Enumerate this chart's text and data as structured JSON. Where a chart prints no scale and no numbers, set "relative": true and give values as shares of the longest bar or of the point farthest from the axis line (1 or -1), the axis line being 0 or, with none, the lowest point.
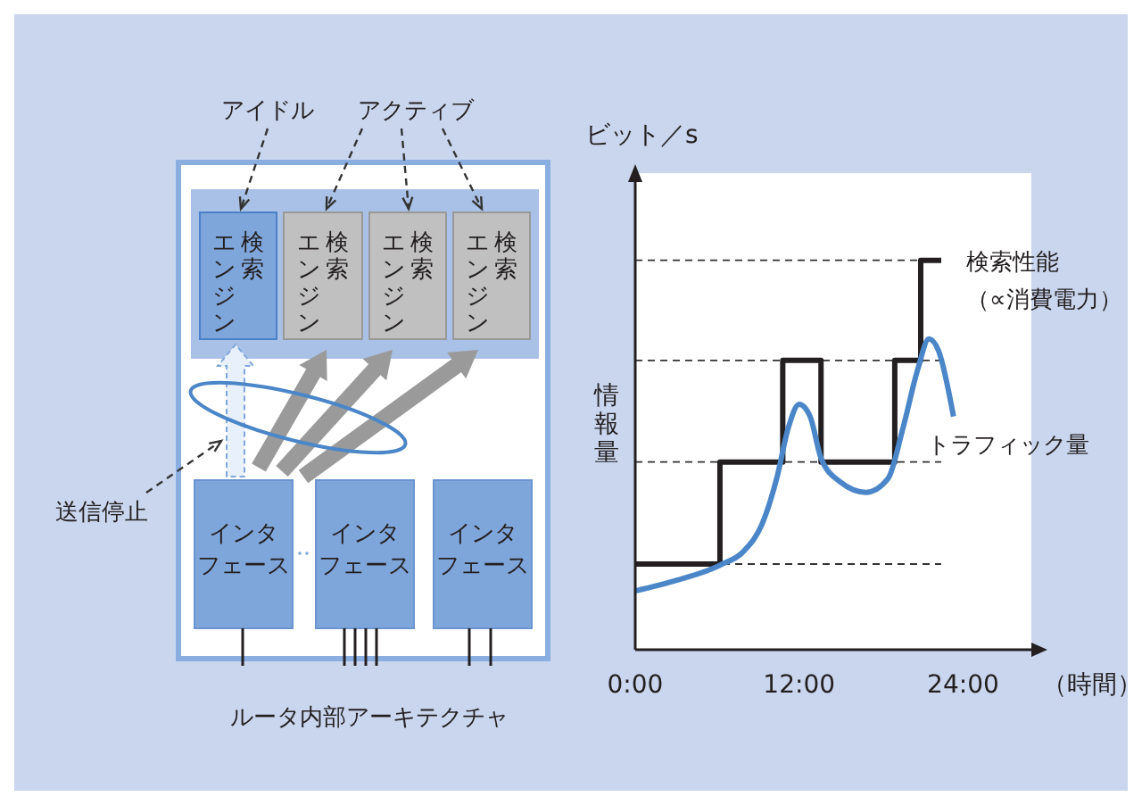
{
  "chart_data": [
    {
      "type": "other",
      "title": "ルータ内部アーキテクチャ",
      "annotations": [
        "アイドル",
        "アクティブ",
        "検索エンジン",
        "検索エンジン",
        "検索エンジン",
        "検索エンジン",
        "送信停止",
        "インタフェース",
        "インタフェース",
        "インタフェース"
      ]
    },
    {
      "type": "line",
      "xlabel": "（時間）",
      "ylabel": "情報量",
      "annotations": [
        "ビット／s"
      ],
      "relative": true,
      "xlim": [
        0,
        29
      ],
      "xticks": [
        {
          "value": 0,
          "label": "0:00"
        },
        {
          "value": 12,
          "label": "12:00"
        },
        {
          "value": 24,
          "label": "24:00"
        }
      ],
      "line_style": "solid",
      "marker": "none",
      "ref_lines": [
        {
          "axis": "y",
          "value": 0.22,
          "color": "#333333",
          "line_style": "dashed"
        },
        {
          "axis": "y",
          "value": 0.482,
          "color": "#333333",
          "line_style": "dashed"
        },
        {
          "axis": "y",
          "value": 0.743,
          "color": "#333333",
          "line_style": "dashed"
        },
        {
          "axis": "y",
          "value": 1,
          "color": "#333333",
          "line_style": "dashed"
        }
      ],
      "series": [
        {
          "type": "step",
          "name": "検索性能（∝消費電力）",
          "color": "#231f20",
          "x": [
            0,
            6.2,
            10.8,
            13.6,
            19.0,
            20.9,
            22.4
          ],
          "values": [
            0.22,
            0.482,
            0.743,
            0.482,
            0.743,
            1,
            1
          ]
        },
        {
          "type": "line",
          "name": "トラフィック量",
          "color": "#4a86c8",
          "x": [
            0,
            3.1,
            6.2,
            8.0,
            9.3,
            10.4,
            11.2,
            12.0,
            12.8,
            13.6,
            15.0,
            16.9,
            18.5,
            19.6,
            20.7,
            21.5,
            22.2,
            23.3
          ],
          "values": [
            0.151,
            0.179,
            0.217,
            0.255,
            0.324,
            0.446,
            0.569,
            0.63,
            0.599,
            0.492,
            0.431,
            0.404,
            0.439,
            0.569,
            0.722,
            0.798,
            0.768,
            0.599
          ]
        }
      ]
    }
  ]
}
